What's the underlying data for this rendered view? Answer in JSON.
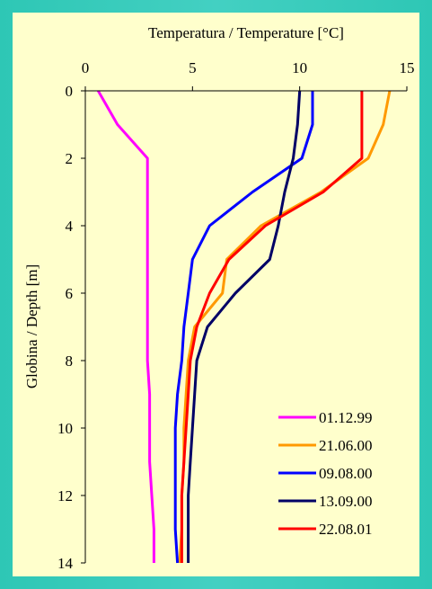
{
  "colors": {
    "background": "#3ccbbb",
    "plot_area": "#ffffcc",
    "legend_bg": "#ffffcc"
  },
  "chart_data": {
    "type": "line",
    "title": "",
    "xlabel": "Temperatura / Temperature [°C]",
    "ylabel": "Globina / Depth [m]",
    "x_axis_position": "top",
    "y_axis_inverted": true,
    "xlim": [
      0,
      15
    ],
    "ylim": [
      0,
      14
    ],
    "xticks": [
      "0",
      "5",
      "10",
      "15"
    ],
    "yticks": [
      "0",
      "2",
      "4",
      "6",
      "8",
      "10",
      "12",
      "14"
    ],
    "grid": false,
    "legend_position": "bottom-right",
    "series": [
      {
        "name": "01.12.99",
        "color": "#ff00ff",
        "points": [
          [
            0.6,
            0
          ],
          [
            1.5,
            1
          ],
          [
            2.9,
            2
          ],
          [
            2.9,
            3
          ],
          [
            2.9,
            4
          ],
          [
            2.9,
            5
          ],
          [
            2.9,
            6
          ],
          [
            2.9,
            7
          ],
          [
            2.9,
            8
          ],
          [
            3.0,
            9
          ],
          [
            3.0,
            10
          ],
          [
            3.0,
            11
          ],
          [
            3.1,
            12
          ],
          [
            3.2,
            13
          ],
          [
            3.2,
            14
          ]
        ]
      },
      {
        "name": "21.06.00",
        "color": "#ff9900",
        "points": [
          [
            14.2,
            0
          ],
          [
            13.9,
            1
          ],
          [
            13.2,
            2
          ],
          [
            11.0,
            3
          ],
          [
            8.2,
            4
          ],
          [
            6.6,
            5
          ],
          [
            6.4,
            6
          ],
          [
            5.1,
            7
          ],
          [
            4.8,
            8
          ],
          [
            4.7,
            9
          ],
          [
            4.6,
            10
          ],
          [
            4.6,
            11
          ],
          [
            4.5,
            12
          ],
          [
            4.5,
            13
          ],
          [
            4.4,
            14
          ]
        ]
      },
      {
        "name": "09.08.00",
        "color": "#0000ff",
        "points": [
          [
            10.6,
            0
          ],
          [
            10.6,
            1
          ],
          [
            10.1,
            2
          ],
          [
            7.8,
            3
          ],
          [
            5.8,
            4
          ],
          [
            5.0,
            5
          ],
          [
            4.8,
            6
          ],
          [
            4.6,
            7
          ],
          [
            4.5,
            8
          ],
          [
            4.3,
            9
          ],
          [
            4.2,
            10
          ],
          [
            4.2,
            11
          ],
          [
            4.2,
            12
          ],
          [
            4.2,
            13
          ],
          [
            4.3,
            14
          ]
        ]
      },
      {
        "name": "13.09.00",
        "color": "#000066",
        "points": [
          [
            10.0,
            0
          ],
          [
            9.9,
            1
          ],
          [
            9.7,
            2
          ],
          [
            9.3,
            3
          ],
          [
            9.0,
            4
          ],
          [
            8.6,
            5
          ],
          [
            7.0,
            6
          ],
          [
            5.7,
            7
          ],
          [
            5.2,
            8
          ],
          [
            5.1,
            9
          ],
          [
            5.0,
            10
          ],
          [
            4.9,
            11
          ],
          [
            4.8,
            12
          ],
          [
            4.8,
            13
          ],
          [
            4.8,
            14
          ]
        ]
      },
      {
        "name": "22.08.01",
        "color": "#ff0000",
        "points": [
          [
            12.9,
            0
          ],
          [
            12.9,
            1
          ],
          [
            12.9,
            2
          ],
          [
            11.1,
            3
          ],
          [
            8.4,
            4
          ],
          [
            6.7,
            5
          ],
          [
            5.8,
            6
          ],
          [
            5.2,
            7
          ],
          [
            4.9,
            8
          ],
          [
            4.8,
            9
          ],
          [
            4.7,
            10
          ],
          [
            4.6,
            11
          ],
          [
            4.5,
            12
          ],
          [
            4.5,
            13
          ],
          [
            4.5,
            14
          ]
        ]
      }
    ]
  }
}
